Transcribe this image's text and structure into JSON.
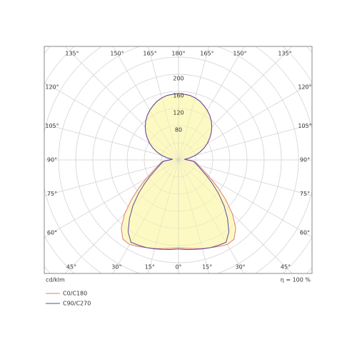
{
  "chart_data": {
    "type": "polar",
    "angles": [
      0,
      5,
      10,
      15,
      20,
      25,
      30,
      35,
      40,
      45,
      50,
      55,
      60,
      65,
      70,
      75,
      80,
      85,
      90,
      95,
      100,
      105,
      110,
      115,
      120,
      125,
      130,
      135,
      140,
      145,
      150,
      155,
      160,
      165,
      170,
      175,
      180
    ],
    "series": [
      {
        "name": "C0/C180",
        "color": "#e07a84",
        "values": [
          205,
          207,
          210,
          214,
          218,
          223,
          228,
          226,
          208,
          178,
          143,
          112,
          87,
          69,
          57,
          49,
          43,
          37,
          24,
          14,
          27,
          40,
          53,
          66,
          78,
          89,
          100,
          110,
          119,
          127,
          134,
          140,
          146,
          150,
          153,
          154,
          155
        ]
      },
      {
        "name": "C90/C270",
        "color": "#5b4a9e",
        "values": [
          208,
          210,
          212,
          215,
          218,
          220,
          222,
          205,
          178,
          150,
          122,
          97,
          77,
          62,
          52,
          45,
          40,
          34,
          20,
          14,
          27,
          40,
          53,
          66,
          78,
          89,
          100,
          110,
          119,
          127,
          134,
          140,
          146,
          150,
          153,
          154,
          155
        ]
      }
    ],
    "area_color": "#fdf9c2",
    "rlim": [
      0,
      480
    ],
    "r_grid_step": 40,
    "rticks": [
      80,
      120,
      160,
      200
    ],
    "angle_ticks": [
      {
        "value": 0,
        "label": "0°"
      },
      {
        "value": 15,
        "label": "15°"
      },
      {
        "value": 30,
        "label": "30°"
      },
      {
        "value": 45,
        "label": "45°"
      },
      {
        "value": 60,
        "label": "60°"
      },
      {
        "value": 75,
        "label": "75°"
      },
      {
        "value": 90,
        "label": "90°"
      },
      {
        "value": 105,
        "label": "105°"
      },
      {
        "value": 120,
        "label": "120°"
      },
      {
        "value": 135,
        "label": "135°"
      },
      {
        "value": 150,
        "label": "150°"
      },
      {
        "value": 165,
        "label": "165°"
      },
      {
        "value": 180,
        "label": "180°"
      }
    ],
    "unit_label": "cd/klm",
    "efficiency_label": "η = 100 %"
  }
}
